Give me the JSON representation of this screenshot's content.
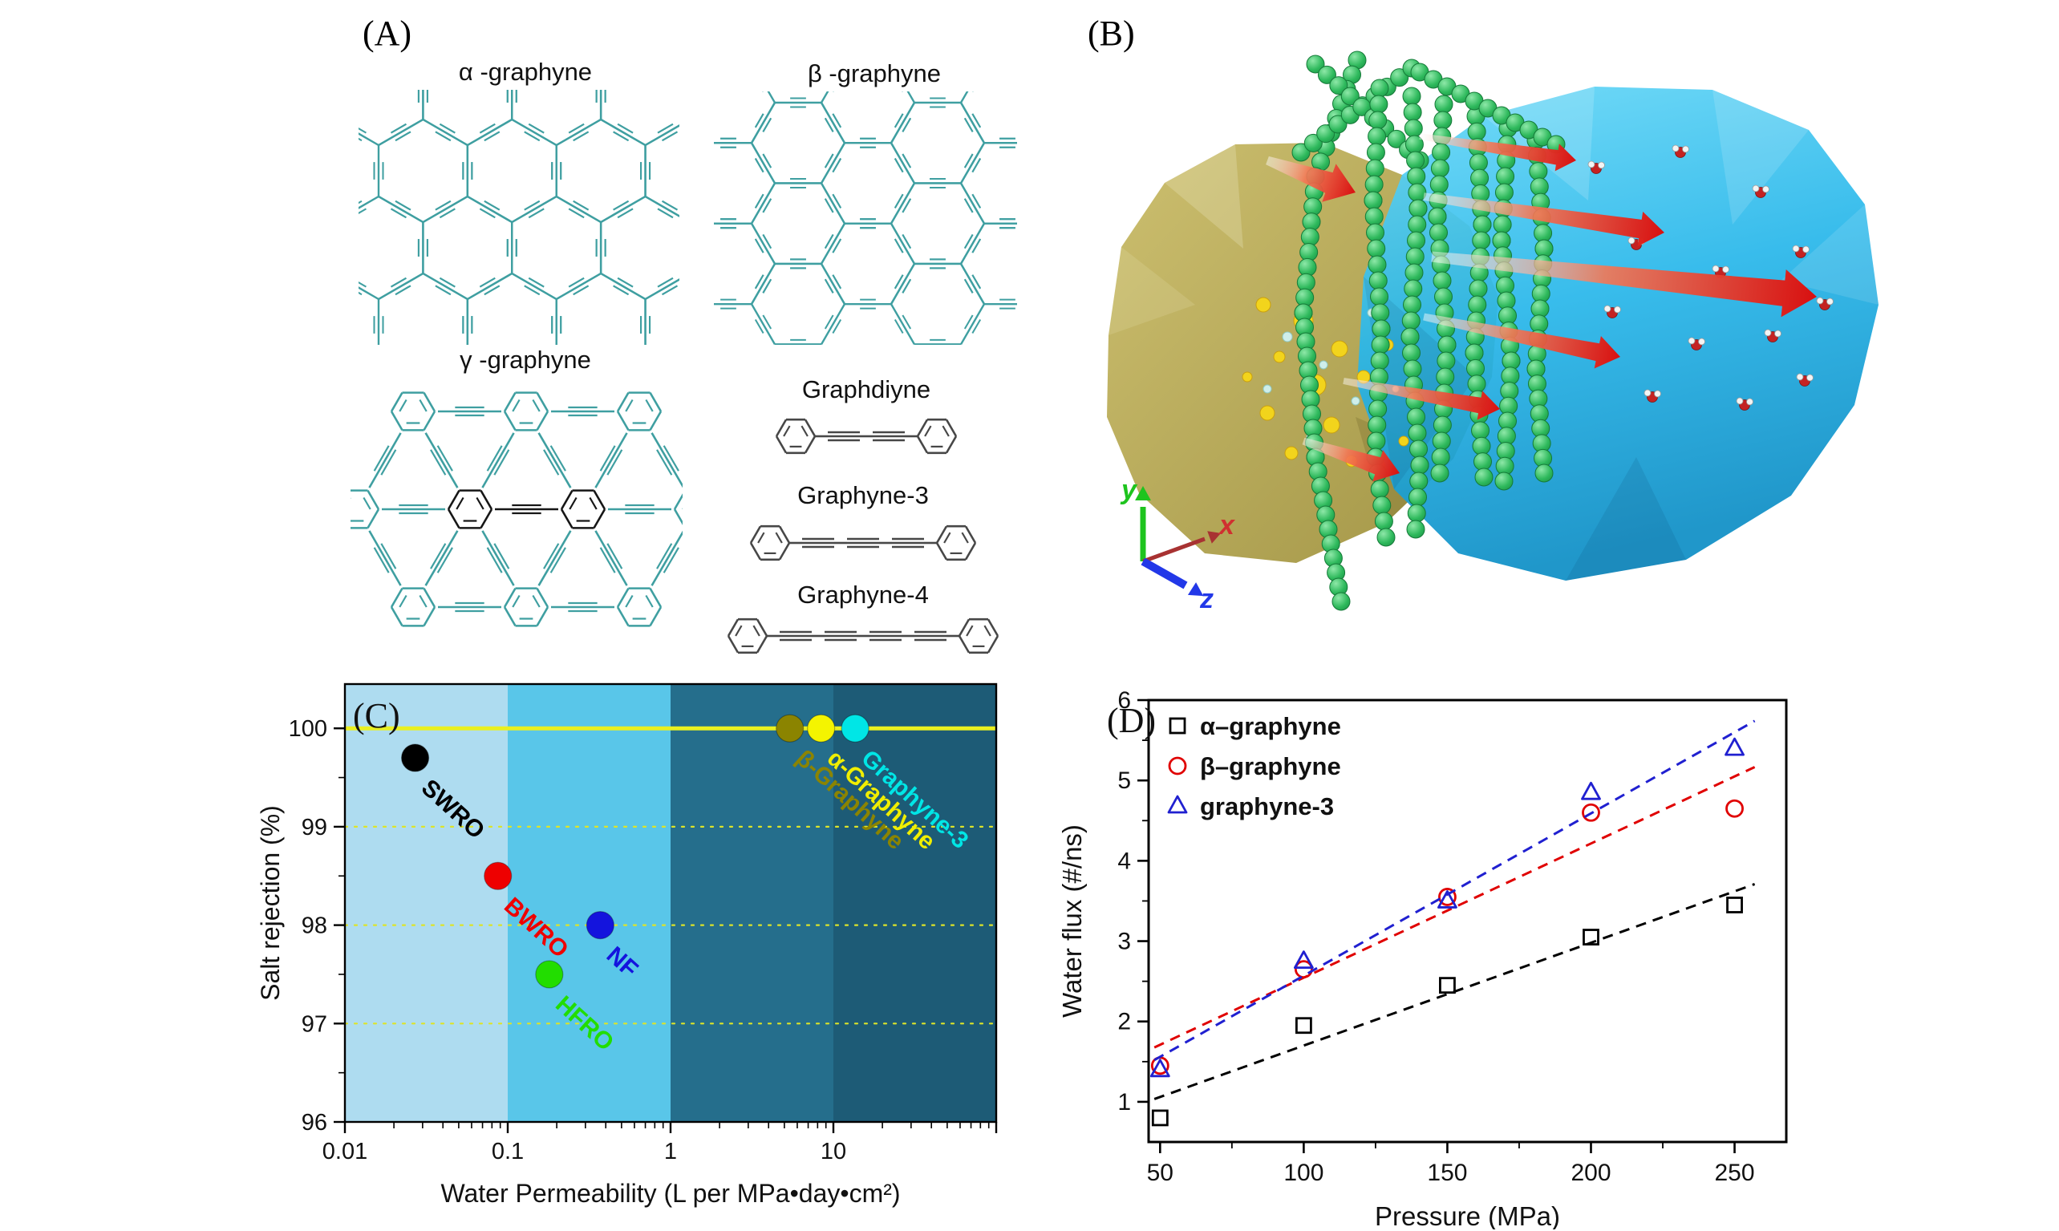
{
  "panelA": {
    "label": "(A)",
    "lattice_color": "#3f9fa1",
    "molecule_color": "#474747",
    "highlight_color": "#161616",
    "lattices": [
      {
        "id": "alpha",
        "label": "α -graphyne"
      },
      {
        "id": "beta",
        "label": "β -graphyne"
      },
      {
        "id": "gamma",
        "label": "γ -graphyne"
      }
    ],
    "molecules": [
      {
        "id": "graphdiyne",
        "label": "Graphdiyne",
        "triple_bonds": 2
      },
      {
        "id": "graphyne3",
        "label": "Graphyne-3",
        "triple_bonds": 3
      },
      {
        "id": "graphyne4",
        "label": "Graphyne-4",
        "triple_bonds": 4
      }
    ]
  },
  "panelB": {
    "label": "(B)",
    "axis_labels": {
      "x": "x",
      "y": "y",
      "z": "z"
    },
    "colors": {
      "feed_reservoir": "#b5a64e",
      "permeate_reservoir": "#29b7ea",
      "membrane_bead": "#2eb95c",
      "flux_arrow": "#d81010",
      "ion_na": "#f2d41c",
      "ion_cl": "#cfeeea"
    }
  },
  "chart_data": [
    {
      "id": "C",
      "panel_label": "(C)",
      "type": "scatter",
      "xscale": "log",
      "xlabel": "Water Permeability (L per MPa•day•cm²)",
      "ylabel": "Salt rejection (%)",
      "xlim": [
        0.01,
        100
      ],
      "ylim": [
        96,
        100.45
      ],
      "xticks": [
        0.01,
        0.1,
        1,
        10
      ],
      "xtick_labels": [
        "0.01",
        "0.1",
        "1",
        "10"
      ],
      "yticks": [
        96,
        97,
        98,
        99,
        100
      ],
      "bands": [
        {
          "from": 0.01,
          "to": 0.1,
          "color": "#aedcf0"
        },
        {
          "from": 0.1,
          "to": 1,
          "color": "#59c6e9"
        },
        {
          "from": 1,
          "to": 10,
          "color": "#256e8c"
        },
        {
          "from": 10,
          "to": 100,
          "color": "#1d5b76"
        }
      ],
      "reference_line": {
        "y": 100,
        "color": "#eaf020",
        "width": 5
      },
      "dashed_gridlines": {
        "ys": [
          97,
          98,
          99
        ],
        "color": "#dde428"
      },
      "points": [
        {
          "label": "SWRO",
          "x": 0.027,
          "y": 99.7,
          "color": "#000000",
          "label_color": "#000000"
        },
        {
          "label": "BWRO",
          "x": 0.087,
          "y": 98.5,
          "color": "#ee0000",
          "label_color": "#ee0000"
        },
        {
          "label": "NF",
          "x": 0.37,
          "y": 98.0,
          "color": "#1414dd",
          "label_color": "#1414dd"
        },
        {
          "label": "HFRO",
          "x": 0.18,
          "y": 97.5,
          "color": "#22dd00",
          "label_color": "#22dd00"
        },
        {
          "label": "β-Graphyne",
          "x": 5.4,
          "y": 100,
          "color": "#8b8400",
          "label_color": "#8b8400"
        },
        {
          "label": "α-Graphyne",
          "x": 8.4,
          "y": 100,
          "color": "#f4f400",
          "label_color": "#f0ee00"
        },
        {
          "label": "Graphyne-3",
          "x": 13.6,
          "y": 100,
          "color": "#00e6e6",
          "label_color": "#00e6e6"
        }
      ]
    },
    {
      "id": "D",
      "panel_label": "(D)",
      "type": "scatter",
      "xlabel": "Pressure (MPa)",
      "ylabel": "Water flux (#/ns)",
      "xlim": [
        46,
        268
      ],
      "ylim": [
        0.5,
        6
      ],
      "xticks": [
        50,
        100,
        150,
        200,
        250
      ],
      "yticks": [
        1,
        2,
        3,
        4,
        5,
        6
      ],
      "x_minor_step": 25,
      "y_minor_step": 0.5,
      "trend": "linear-dashed",
      "series": [
        {
          "name": "α–graphyne",
          "marker": "square",
          "color": "#000000",
          "x": [
            50,
            100,
            150,
            200,
            250
          ],
          "y": [
            0.8,
            1.95,
            2.45,
            3.05,
            3.45
          ]
        },
        {
          "name": "β–graphyne",
          "marker": "circle",
          "color": "#e00000",
          "x": [
            50,
            100,
            150,
            200,
            250
          ],
          "y": [
            1.45,
            2.65,
            3.55,
            4.6,
            4.65
          ]
        },
        {
          "name": "graphyne-3",
          "marker": "triangle",
          "color": "#2020d0",
          "x": [
            50,
            100,
            150,
            200,
            250
          ],
          "y": [
            1.4,
            2.75,
            3.5,
            4.85,
            5.4
          ]
        }
      ]
    }
  ]
}
